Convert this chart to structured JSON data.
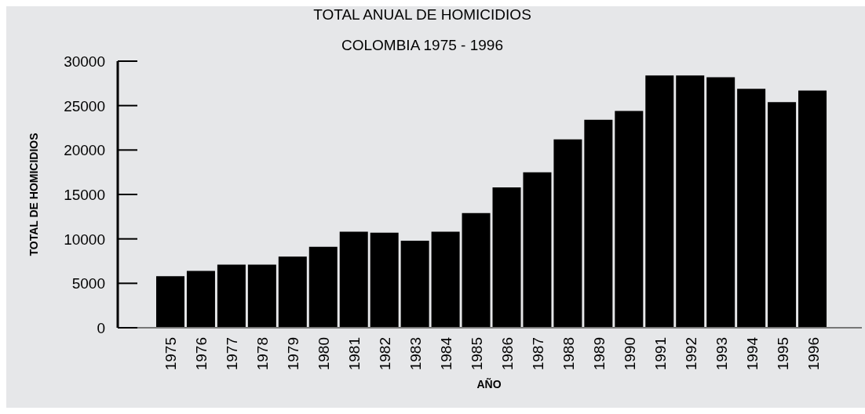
{
  "chart_data": {
    "type": "bar",
    "title": "TOTAL ANUAL DE HOMICIDIOS",
    "subtitle": "COLOMBIA 1975 - 1996",
    "xlabel": "AÑO",
    "ylabel": "TOTAL DE HOMICIDIOS",
    "categories": [
      "1975",
      "1976",
      "1977",
      "1978",
      "1979",
      "1980",
      "1981",
      "1982",
      "1983",
      "1984",
      "1985",
      "1986",
      "1987",
      "1988",
      "1989",
      "1990",
      "1991",
      "1992",
      "1993",
      "1994",
      "1995",
      "1996"
    ],
    "values": [
      5800,
      6400,
      7100,
      7100,
      8000,
      9100,
      10800,
      10700,
      9800,
      10800,
      12900,
      15800,
      17500,
      21200,
      23400,
      24400,
      28400,
      28400,
      28200,
      26900,
      25400,
      26700
    ],
    "color": "#000000",
    "ylim": [
      0,
      30000
    ],
    "yticks": [
      0,
      5000,
      10000,
      15000,
      20000,
      25000,
      30000
    ],
    "grid": false,
    "legend": false
  }
}
